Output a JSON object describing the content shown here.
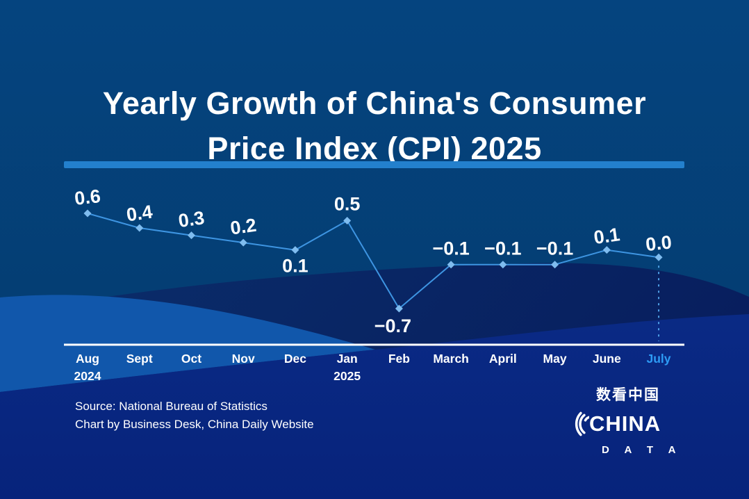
{
  "header": {
    "title_line1": "Yearly Growth of China's Consumer",
    "title_line2": "Price Index (CPI) 2025"
  },
  "chart_data": {
    "type": "line",
    "title": "Yearly Growth of China's Consumer Price Index (CPI) 2025",
    "categories": [
      {
        "label": "Aug",
        "sublabel": "2024"
      },
      {
        "label": "Sept"
      },
      {
        "label": "Oct"
      },
      {
        "label": "Nov"
      },
      {
        "label": "Dec"
      },
      {
        "label": "Jan",
        "sublabel": "2025"
      },
      {
        "label": "Feb"
      },
      {
        "label": "March"
      },
      {
        "label": "April"
      },
      {
        "label": "May"
      },
      {
        "label": "June"
      },
      {
        "label": "July",
        "highlight": true
      }
    ],
    "values": [
      0.6,
      0.4,
      0.3,
      0.2,
      0.1,
      0.5,
      -0.7,
      -0.1,
      -0.1,
      -0.1,
      0.1,
      0.0
    ],
    "value_labels": [
      "0.6",
      "0.4",
      "0.3",
      "0.2",
      "0.1",
      "0.5",
      "−0.7",
      "−0.1",
      "−0.1",
      "−0.1",
      "0.1",
      "0.0"
    ],
    "ylim": [
      -0.9,
      0.8
    ],
    "grid": false,
    "legend": false,
    "colors": {
      "line": "#3E95E2",
      "marker": "#7FBCEF",
      "axis": "#FFFFFF",
      "tick_highlight": "#2D9BF5",
      "divider": "#2380CD",
      "dashed_guide": "#4FA0E6"
    }
  },
  "footer": {
    "source_line1": "Source: National Bureau of Statistics",
    "source_line2": "Chart by Business Desk, China Daily Website"
  },
  "logo": {
    "chinese": "数看中国",
    "line1": "CHINA",
    "line2": "D A T A"
  }
}
